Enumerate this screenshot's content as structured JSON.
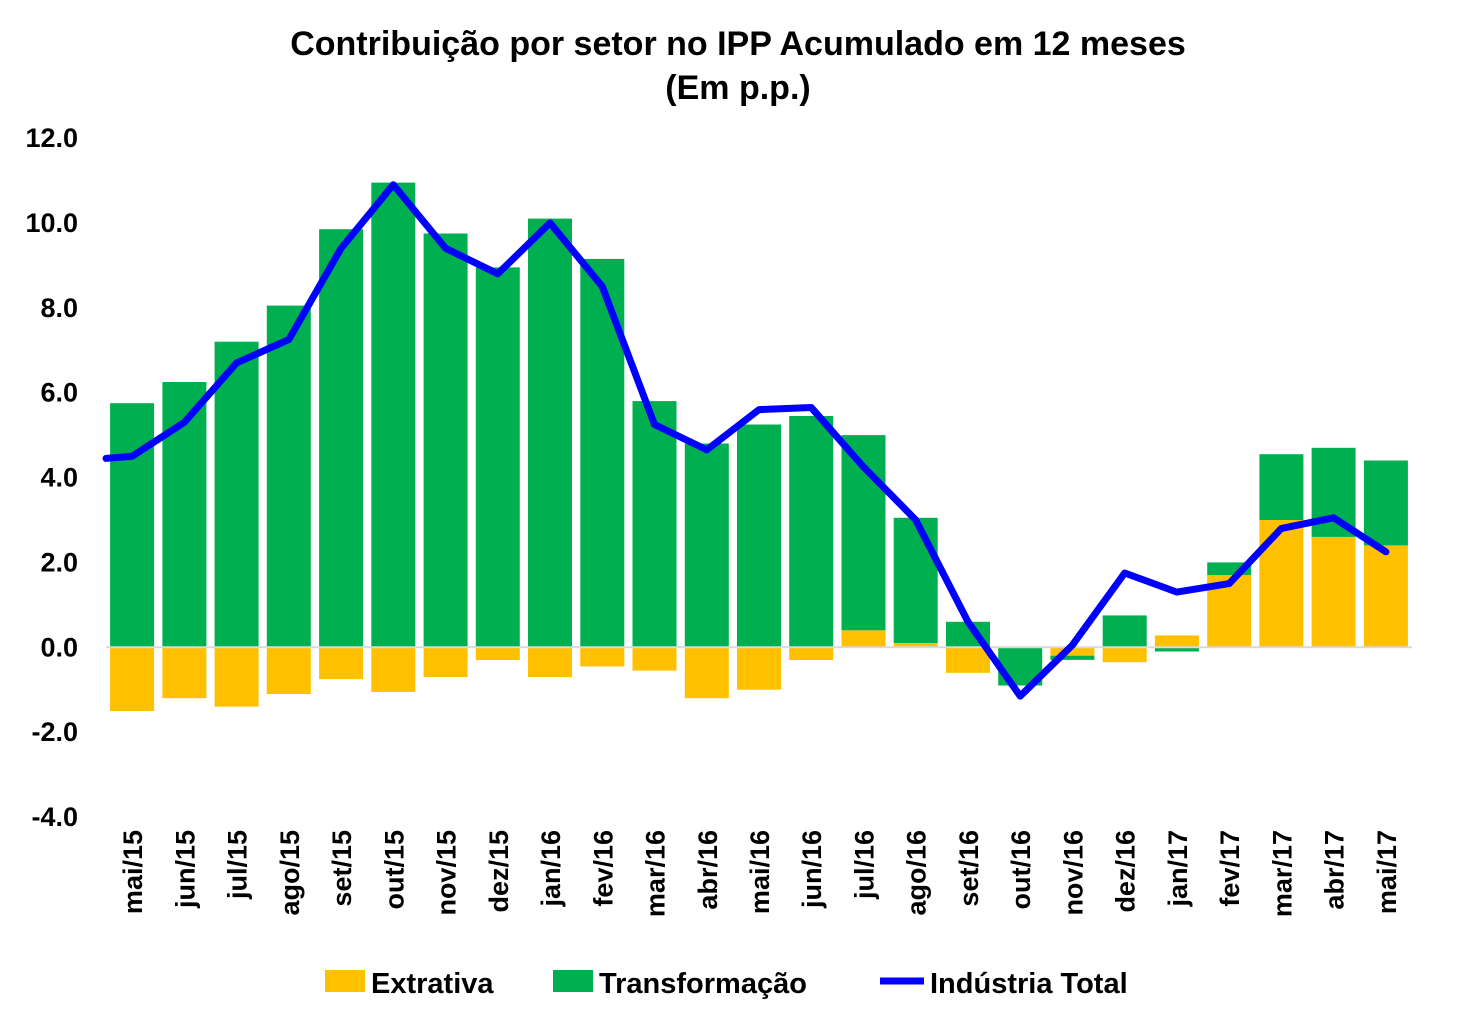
{
  "chart_data": {
    "type": "bar",
    "title": "Contribuição por setor no IPP Acumulado em 12 meses",
    "subtitle": "(Em p.p.)",
    "categories": [
      "mai/15",
      "jun/15",
      "jul/15",
      "ago/15",
      "set/15",
      "out/15",
      "nov/15",
      "dez/15",
      "jan/16",
      "fev/16",
      "mar/16",
      "abr/16",
      "mai/16",
      "jun/16",
      "jul/16",
      "ago/16",
      "set/16",
      "out/16",
      "nov/16",
      "dez/16",
      "jan/17",
      "fev/17",
      "mar/17",
      "abr/17",
      "mai/17"
    ],
    "ylim": [
      -4.0,
      12.0
    ],
    "yticks": [
      "12.0",
      "10.0",
      "8.0",
      "6.0",
      "4.0",
      "2.0",
      "0.0",
      "-2.0",
      "-4.0"
    ],
    "stacked": true,
    "series": [
      {
        "name": "Extrativa",
        "type": "bar",
        "color": "#FFC000",
        "values": [
          -1.5,
          -1.2,
          -1.4,
          -1.1,
          -0.75,
          -1.05,
          -0.7,
          -0.3,
          -0.7,
          -0.45,
          -0.55,
          -1.2,
          -1.0,
          -0.3,
          0.4,
          0.1,
          -0.6,
          0.0,
          -0.2,
          -0.35,
          0.28,
          1.7,
          3.0,
          2.6,
          2.4
        ]
      },
      {
        "name": "Transformação",
        "type": "bar",
        "color": "#00B050",
        "values": [
          5.75,
          6.25,
          7.2,
          8.05,
          9.85,
          10.95,
          9.75,
          8.95,
          10.1,
          9.15,
          5.8,
          4.8,
          5.25,
          5.45,
          4.6,
          2.95,
          0.6,
          -0.9,
          -0.1,
          0.75,
          -0.1,
          0.3,
          1.55,
          2.1,
          2.0
        ]
      },
      {
        "name": "Indústria Total",
        "type": "line",
        "color": "#0000FF",
        "values": [
          4.5,
          5.3,
          6.7,
          7.25,
          9.4,
          10.9,
          9.4,
          8.8,
          10.0,
          8.5,
          5.25,
          4.65,
          5.6,
          5.65,
          4.25,
          3.0,
          0.6,
          -1.15,
          0.05,
          1.75,
          1.3,
          1.5,
          2.8,
          3.05,
          2.25
        ]
      }
    ],
    "legend": "bottom",
    "grid": false
  }
}
